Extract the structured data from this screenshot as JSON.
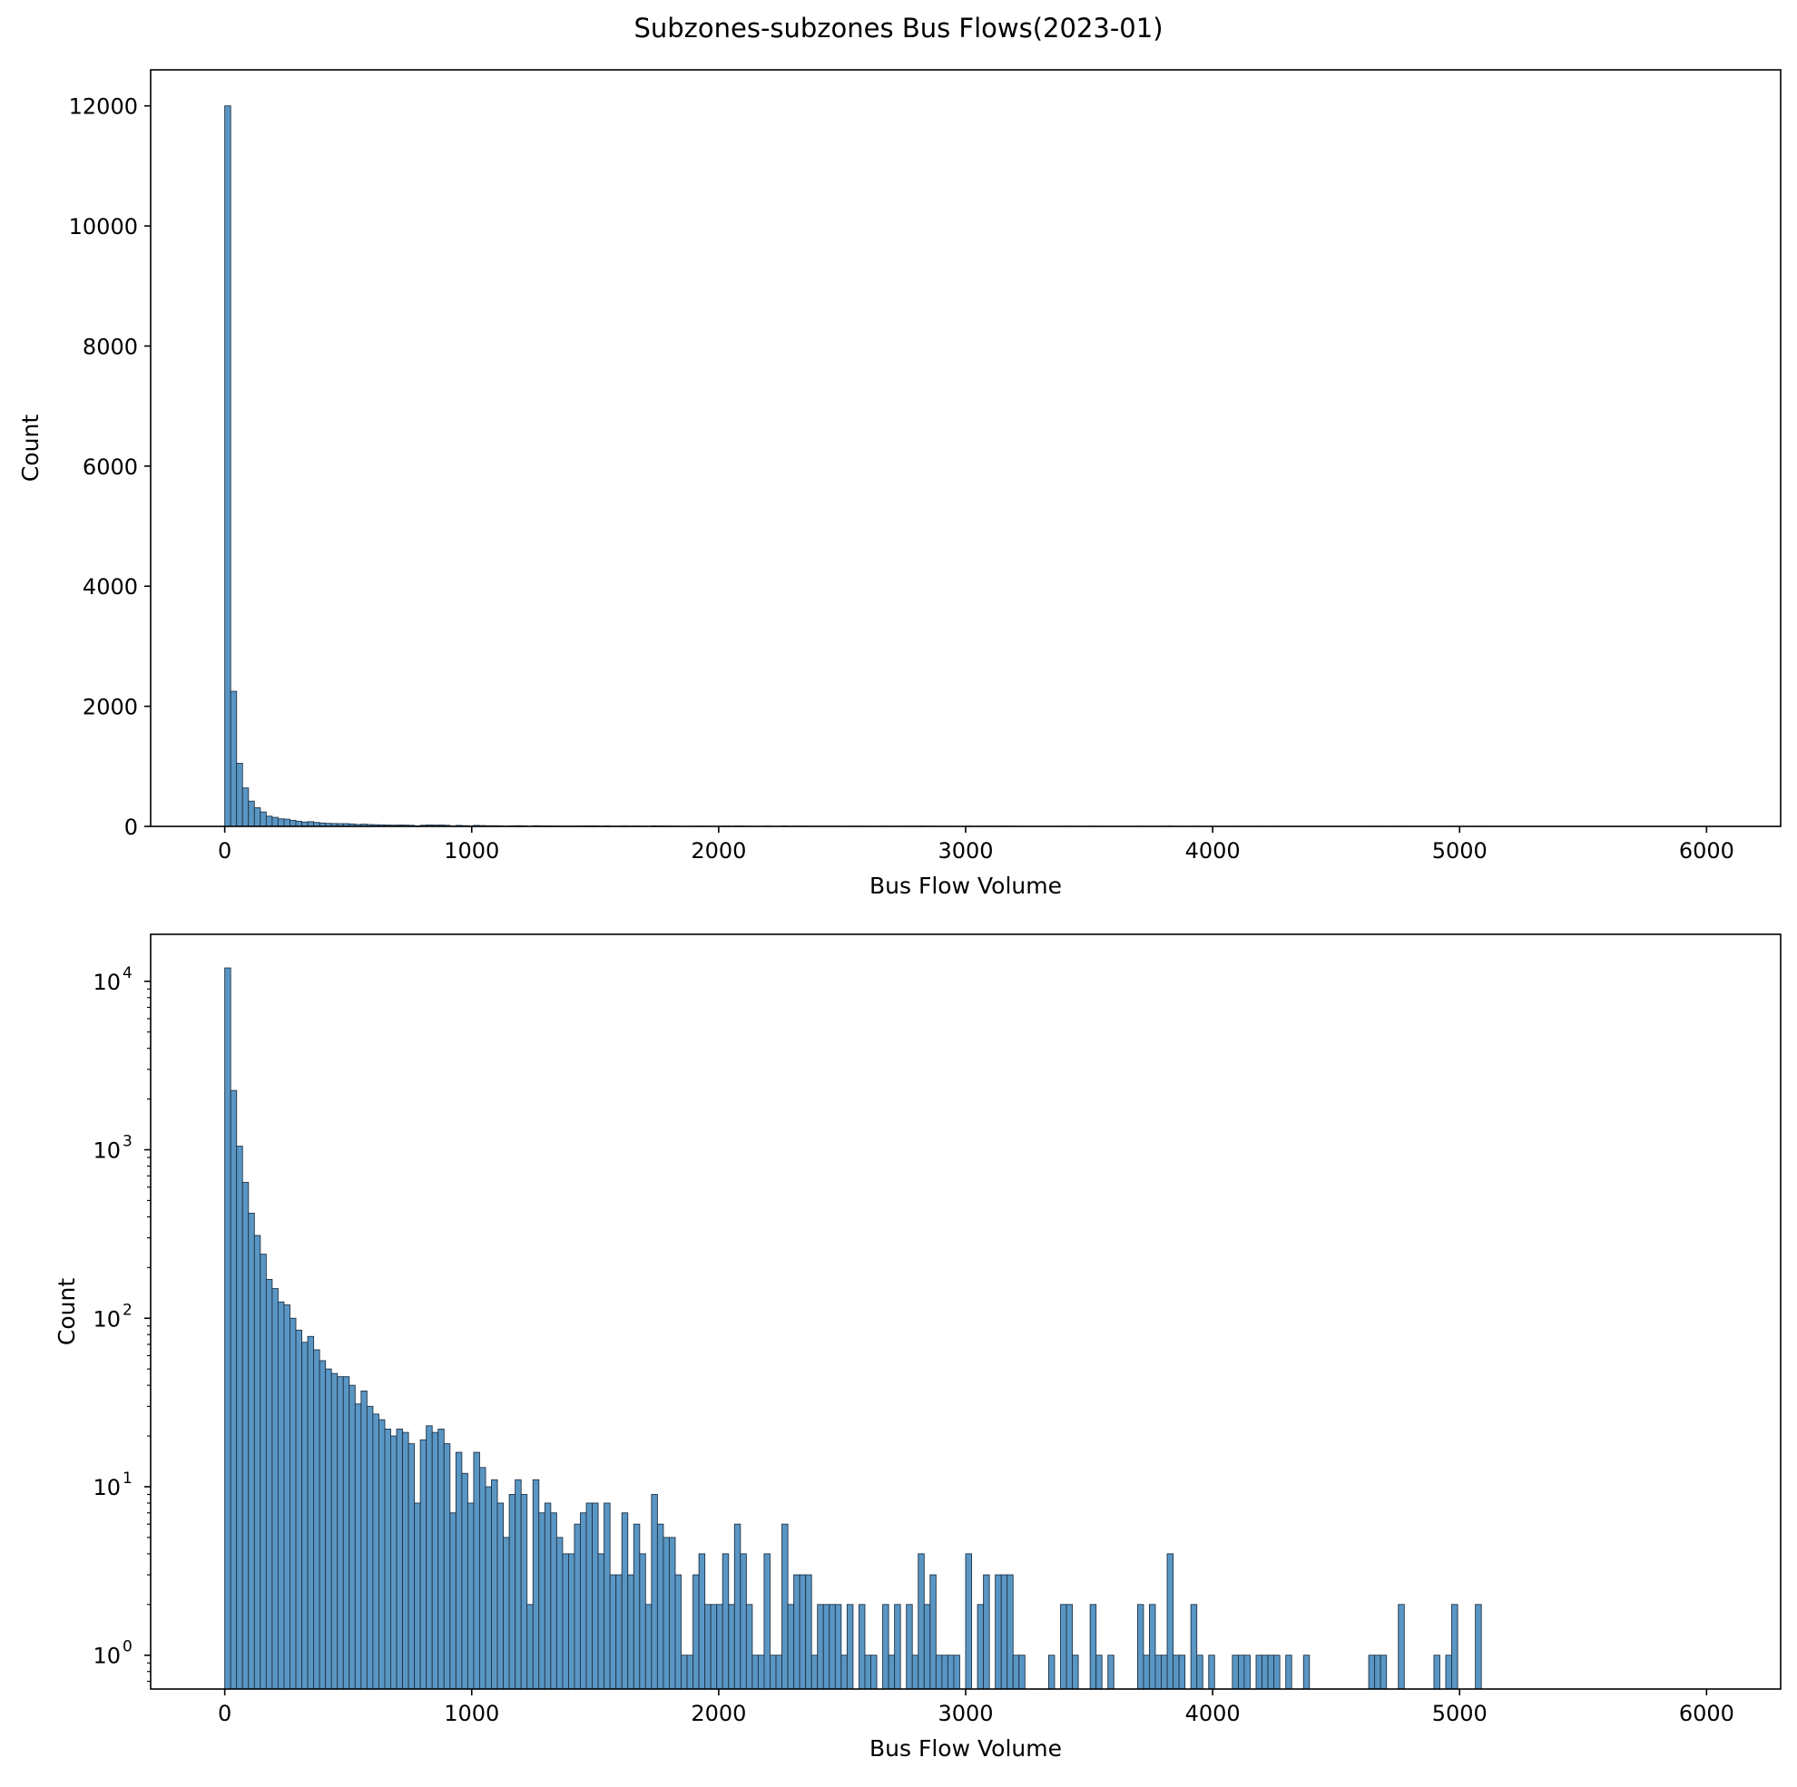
{
  "figure_title": "Subzones-subzones Bus Flows(2023-01)",
  "colors": {
    "bar_fill": "#5a96c4",
    "bar_edge": "#1f3347"
  },
  "chart_data": [
    {
      "type": "bar",
      "subtype": "histogram",
      "scale": "linear",
      "xlabel": "Bus Flow Volume",
      "ylabel": "Count",
      "xlim": [
        -300,
        6300
      ],
      "ylim": [
        0,
        12600
      ],
      "xticks": [
        0,
        1000,
        2000,
        3000,
        4000,
        5000,
        6000
      ],
      "yticks": [
        0,
        2000,
        4000,
        6000,
        8000,
        10000,
        12000
      ],
      "bin_start": 0,
      "bin_width": 24,
      "counts": [
        12000,
        2250,
        1050,
        640,
        420,
        310,
        240,
        170,
        150,
        125,
        120,
        100,
        85,
        72,
        78,
        65,
        56,
        50,
        47,
        45,
        45,
        40,
        31,
        37,
        30,
        27,
        25,
        22,
        20,
        22,
        21,
        18,
        8,
        19,
        23,
        21,
        22,
        18,
        7,
        16,
        12,
        8,
        16,
        13,
        10,
        11,
        8,
        5,
        9,
        11,
        9,
        2,
        11,
        7,
        8,
        7,
        5,
        4,
        4,
        6,
        7,
        8,
        8,
        4,
        8,
        3,
        3,
        7,
        3,
        6,
        4,
        2,
        9,
        6,
        5,
        5,
        3,
        1,
        1,
        3,
        4,
        2,
        2,
        2,
        4,
        2,
        6,
        4,
        2,
        1,
        1,
        4,
        1,
        1,
        6,
        2,
        3,
        3,
        3,
        1,
        2,
        2,
        2,
        2,
        1,
        2,
        0,
        2,
        1,
        1,
        0,
        2,
        1,
        2,
        0,
        2,
        1,
        4,
        2,
        3,
        1,
        1,
        1,
        1,
        0,
        4,
        0,
        2,
        3,
        0,
        3,
        3,
        3,
        1,
        1,
        0,
        0,
        0,
        0,
        1,
        0,
        2,
        2,
        1,
        0,
        0,
        2,
        1,
        0,
        1,
        0,
        0,
        0,
        0,
        2,
        1,
        2,
        1,
        1,
        4,
        1,
        1,
        0,
        2,
        1,
        0,
        1,
        0,
        0,
        0,
        1,
        1,
        1,
        0,
        1,
        1,
        1,
        1,
        0,
        1,
        0,
        0,
        1,
        0,
        0,
        0,
        0,
        0,
        0,
        0,
        0,
        0,
        0,
        1,
        1,
        1,
        0,
        0,
        2,
        0,
        0,
        0,
        0,
        0,
        1,
        0,
        1,
        2,
        0,
        0,
        0,
        2
      ]
    },
    {
      "type": "bar",
      "subtype": "histogram",
      "scale": "log",
      "xlabel": "Bus Flow Volume",
      "ylabel": "Count",
      "xlim": [
        -300,
        6300
      ],
      "ylim": [
        0.63,
        19000
      ],
      "xticks": [
        0,
        1000,
        2000,
        3000,
        4000,
        5000,
        6000
      ],
      "yticks": [
        1,
        10,
        100,
        1000,
        10000
      ],
      "ytick_labels": [
        "10",
        "10",
        "10",
        "10",
        "10"
      ],
      "ytick_exponents": [
        "0",
        "1",
        "2",
        "3",
        "4"
      ],
      "bin_start": 0,
      "bin_width": 24,
      "counts_ref": "same as first panel"
    }
  ]
}
